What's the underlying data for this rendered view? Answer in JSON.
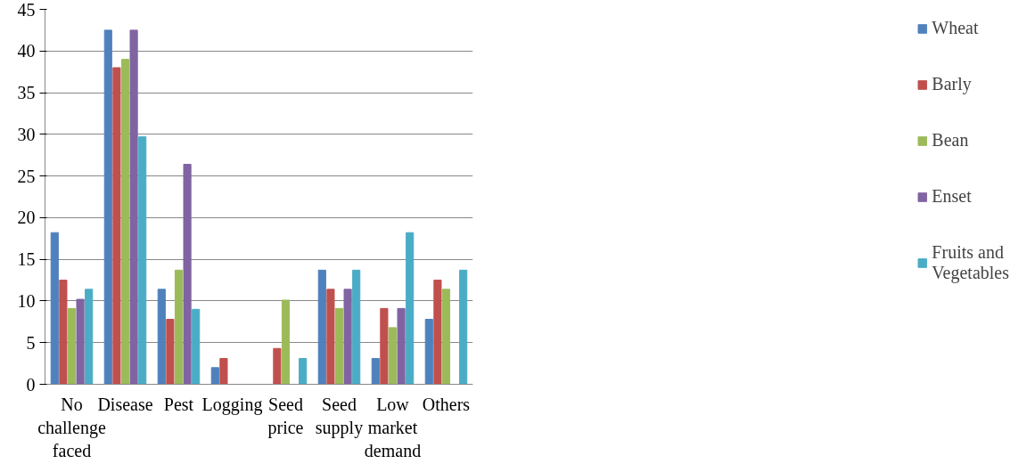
{
  "chart_data": {
    "type": "bar",
    "categories": [
      "No challenge faced",
      "Disease",
      "Pest",
      "Logging",
      "Seed price",
      "Seed supply",
      "Low market demand",
      "Others"
    ],
    "series": [
      {
        "name": "Wheat",
        "color": "#4f81bd",
        "values": [
          18.2,
          42.5,
          11.4,
          2,
          0,
          13.7,
          3.1,
          7.8
        ]
      },
      {
        "name": "Barly",
        "color": "#c0504d",
        "values": [
          12.5,
          38,
          7.8,
          3.1,
          4.3,
          11.4,
          9.1,
          12.5
        ]
      },
      {
        "name": "Bean",
        "color": "#9bbb59",
        "values": [
          9.1,
          39,
          13.7,
          0,
          10.1,
          9.1,
          6.8,
          11.4
        ]
      },
      {
        "name": "Enset",
        "color": "#8064a2",
        "values": [
          10.2,
          42.5,
          26.4,
          0,
          0,
          11.4,
          9.1,
          0
        ]
      },
      {
        "name": "Fruits and Vegetables",
        "color": "#4bacc6",
        "values": [
          11.4,
          29.7,
          9,
          0,
          3.1,
          13.7,
          18.2,
          13.7
        ]
      }
    ],
    "ylim": [
      0,
      45
    ],
    "yticks": [
      0,
      5,
      10,
      15,
      20,
      25,
      30,
      35,
      40,
      45
    ],
    "grid": "y",
    "legend": "right"
  }
}
